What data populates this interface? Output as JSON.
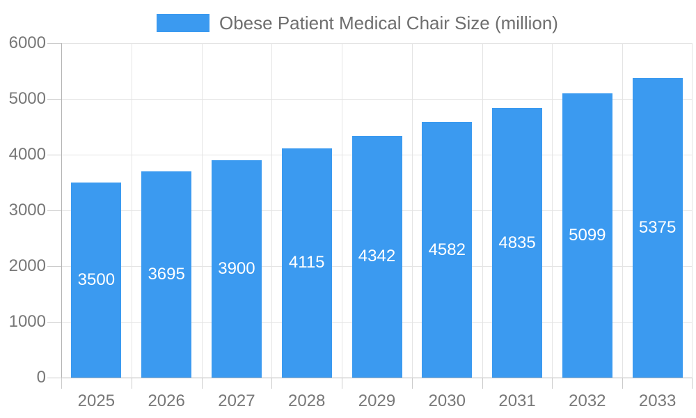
{
  "legend": {
    "label": "Obese Patient Medical Chair Size (million)"
  },
  "chart_data": {
    "type": "bar",
    "title": "Obese Patient Medical Chair Size (million)",
    "categories": [
      "2025",
      "2026",
      "2027",
      "2028",
      "2029",
      "2030",
      "2031",
      "2032",
      "2033"
    ],
    "values": [
      3500,
      3695,
      3900,
      4115,
      4342,
      4582,
      4835,
      5099,
      5375
    ],
    "series_name": "Obese Patient Medical Chair Size (million)",
    "xlabel": "",
    "ylabel": "",
    "ylim": [
      0,
      6000
    ],
    "yticks": [
      0,
      1000,
      2000,
      3000,
      4000,
      5000,
      6000
    ],
    "grid": true,
    "legend_position": "top",
    "bar_labels_visible": true
  },
  "colors": {
    "bar": "#3b9af0",
    "bar_label": "#ffffff",
    "axis_label": "#787878",
    "legend_text": "#6e6e6e",
    "grid_line": "#e4e4e4",
    "axis_line": "#b5b5b5",
    "tick": "#cccccc",
    "background": "#ffffff"
  }
}
